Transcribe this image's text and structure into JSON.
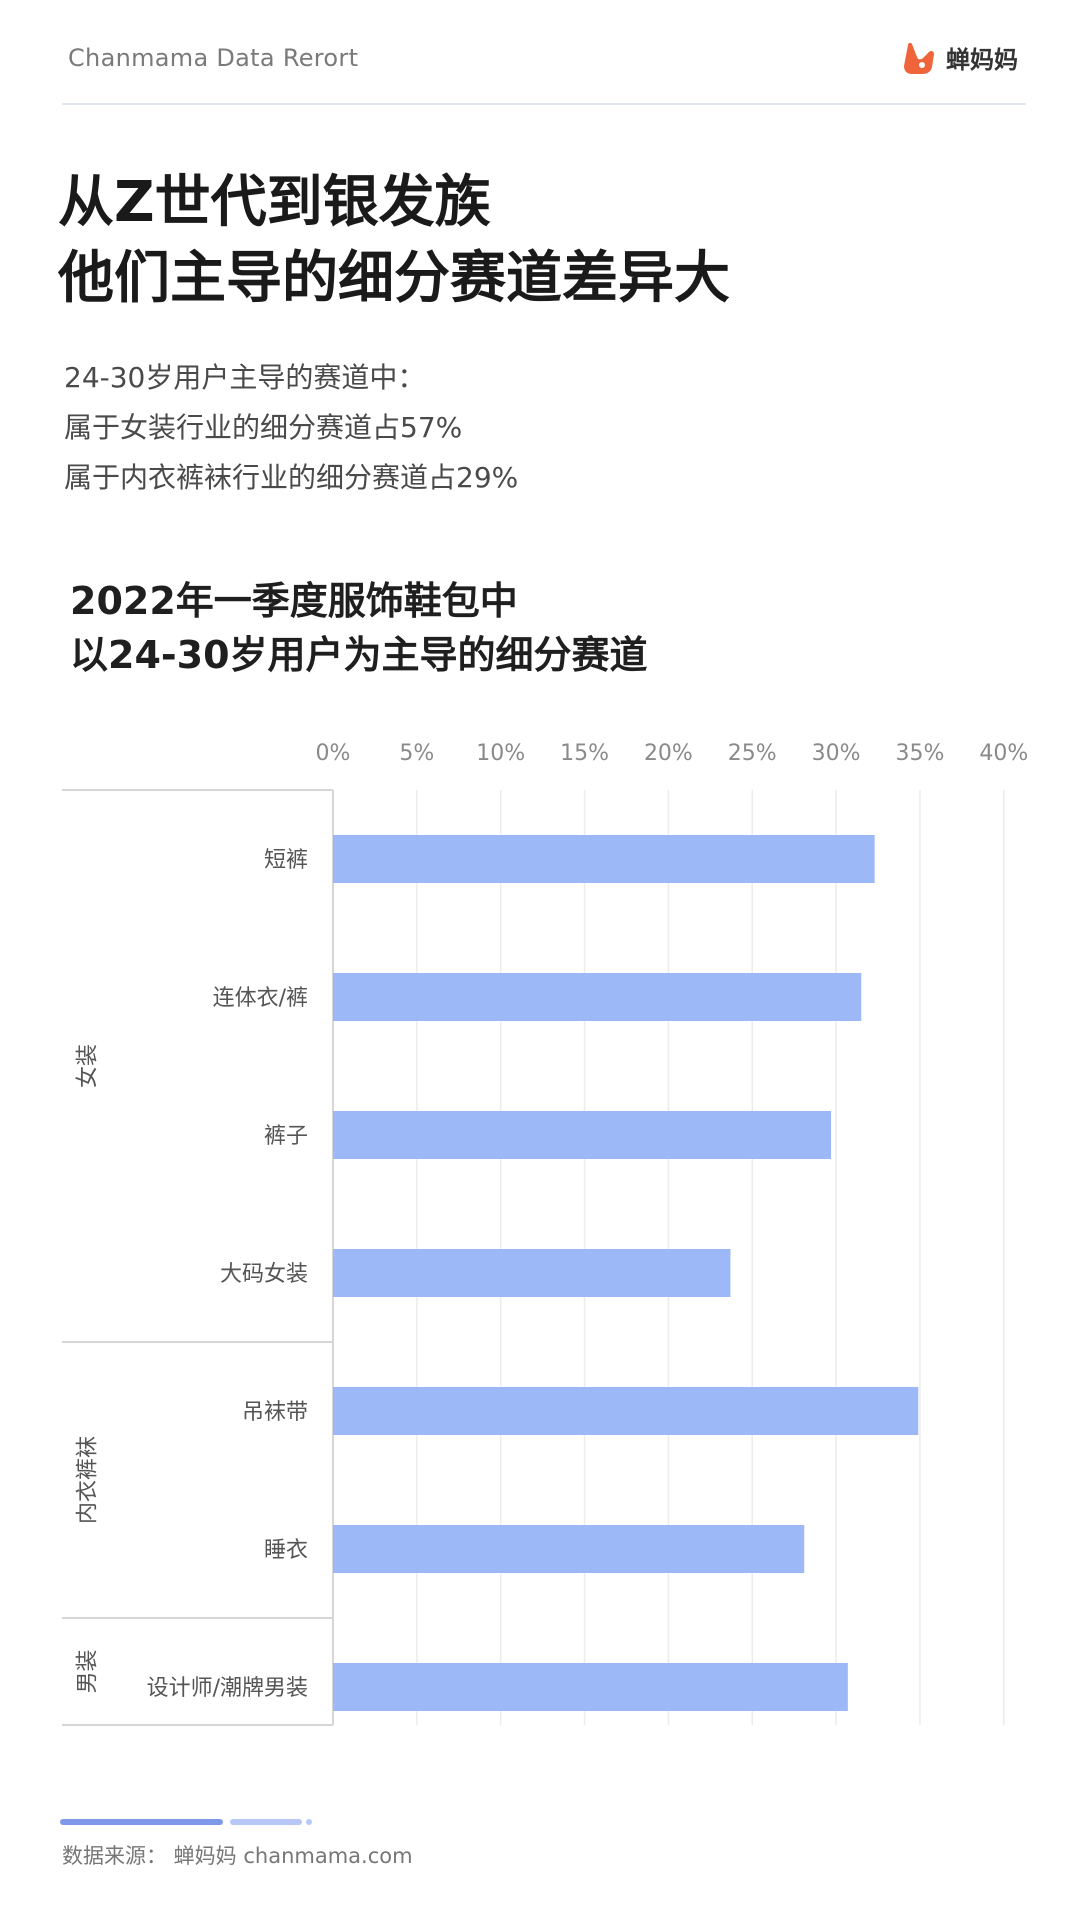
{
  "header": {
    "brand": "Chanmama Data Rerort",
    "logo_text": "蝉妈妈"
  },
  "title": {
    "line1": "从Z世代到银发族",
    "line2": "他们主导的细分赛道差异大"
  },
  "intro": {
    "line1": "24-30岁用户主导的赛道中：",
    "line2": "属于女装行业的细分赛道占57%",
    "line3": "属于内衣裤袜行业的细分赛道占29%"
  },
  "footer": {
    "source": "数据来源：  蝉妈妈 chanmama.com"
  },
  "colors": {
    "bar": "#9db8f7",
    "accent": "#f0643c"
  },
  "icons": {
    "logo": "chanmama-logo-icon"
  },
  "chart_data": {
    "type": "bar",
    "orientation": "horizontal",
    "title": "2022年一季度服饰鞋包中",
    "subtitle": "以24-30岁用户为主导的细分赛道",
    "x_ticks": [
      "0%",
      "5%",
      "10%",
      "15%",
      "20%",
      "25%",
      "30%",
      "35%",
      "40%"
    ],
    "xlim": [
      0,
      40
    ],
    "x_axis_position": "top",
    "grid": true,
    "categories": [
      "短裤",
      "连体衣/裤",
      "裤子",
      "大码女装",
      "吊袜带",
      "睡衣",
      "设计师/潮牌男装"
    ],
    "values": [
      32.3,
      31.5,
      29.7,
      23.7,
      34.9,
      28.1,
      30.7
    ],
    "groups": [
      {
        "name": "女装",
        "count": 4
      },
      {
        "name": "内衣裤袜",
        "count": 2
      },
      {
        "name": "男装",
        "count": 1
      }
    ]
  }
}
